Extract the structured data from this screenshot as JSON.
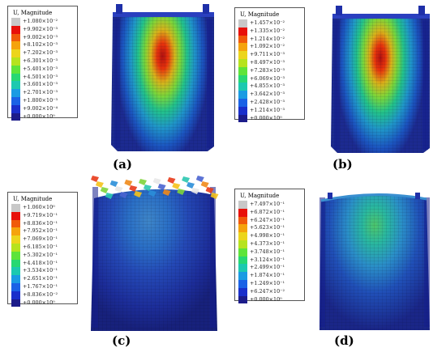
{
  "panels": [
    {
      "label": "(a)",
      "legend_title": "U, Magnitude",
      "ticks": [
        "+1.080×10⁻²",
        "+9.902×10⁻³",
        "+9.002×10⁻³",
        "+8.102×10⁻³",
        "+7.202×10⁻³",
        "+6.301×10⁻³",
        "+5.401×10⁻³",
        "+4.501×10⁻³",
        "+3.601×10⁻³",
        "+2.701×10⁻³",
        "+1.800×10⁻³",
        "+9.002×10⁻⁴",
        "+0.000×10⁰"
      ]
    },
    {
      "label": "(b)",
      "legend_title": "U, Magnitude",
      "ticks": [
        "+1.457×10⁻²",
        "+1.335×10⁻²",
        "+1.214×10⁻²",
        "+1.092×10⁻²",
        "+9.711×10⁻³",
        "+8.497×10⁻³",
        "+7.283×10⁻³",
        "+6.069×10⁻³",
        "+4.855×10⁻³",
        "+3.642×10⁻³",
        "+2.428×10⁻³",
        "+1.214×10⁻³",
        "+0.000×10⁰"
      ]
    },
    {
      "label": "(c)",
      "legend_title": "U, Magnitude",
      "ticks": [
        "+1.060×10⁰",
        "+9.719×10⁻¹",
        "+8.836×10⁻¹",
        "+7.952×10⁻¹",
        "+7.069×10⁻¹",
        "+6.185×10⁻¹",
        "+5.302×10⁻¹",
        "+4.418×10⁻¹",
        "+3.534×10⁻¹",
        "+2.651×10⁻¹",
        "+1.767×10⁻¹",
        "+8.836×10⁻²",
        "+0.000×10⁰"
      ]
    },
    {
      "label": "(d)",
      "legend_title": "U, Magnitude",
      "ticks": [
        "+7.497×10⁻¹",
        "+6.872×10⁻¹",
        "+6.247×10⁻¹",
        "+5.623×10⁻¹",
        "+4.998×10⁻¹",
        "+4.373×10⁻¹",
        "+3.748×10⁻¹",
        "+3.124×10⁻¹",
        "+2.499×10⁻¹",
        "+1.874×10⁻¹",
        "+1.249×10⁻¹",
        "+6.247×10⁻²",
        "+0.000×10⁰"
      ]
    }
  ],
  "colors": {
    "scale": [
      "#c8c8c8",
      "#e8100a",
      "#f05a0a",
      "#f5a30c",
      "#ecd51c",
      "#b6e31e",
      "#5ee43a",
      "#27d873",
      "#1cc9b0",
      "#1a9be3",
      "#1a62e6",
      "#1a2fcb",
      "#1c1c8a",
      "#3a3a3a"
    ]
  }
}
